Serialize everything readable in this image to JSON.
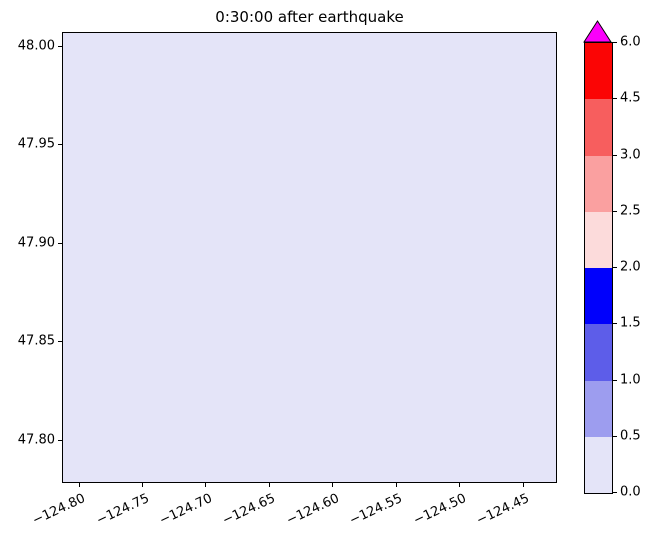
{
  "chart_data": {
    "type": "heatmap",
    "title": "0:30:00 after earthquake",
    "xlabel": "",
    "ylabel": "",
    "x_tick_labels": [
      "−124.80",
      "−124.75",
      "−124.70",
      "−124.65",
      "−124.60",
      "−124.55",
      "−124.50",
      "−124.45"
    ],
    "x_tick_values": [
      -124.8,
      -124.75,
      -124.7,
      -124.65,
      -124.6,
      -124.55,
      -124.5,
      -124.45
    ],
    "y_tick_labels": [
      "48.00",
      "47.95",
      "47.90",
      "47.85",
      "47.80"
    ],
    "y_tick_values": [
      48.0,
      47.95,
      47.9,
      47.85,
      47.8
    ],
    "xlim": [
      -124.813,
      -124.423
    ],
    "ylim": [
      47.778,
      48.007
    ],
    "grid": false,
    "plot_bg_color": "#e4e4f8",
    "field": {
      "description": "uniform field value over the whole map region",
      "uniform": true,
      "value_bin": [
        0.0,
        0.5
      ]
    },
    "colorbar": {
      "position": "right",
      "extend": "max",
      "boundaries": [
        0.0,
        0.5,
        1.0,
        1.5,
        2.0,
        2.5,
        3.0,
        4.5,
        6.0
      ],
      "tick_labels": [
        "0.0",
        "0.5",
        "1.0",
        "1.5",
        "2.0",
        "2.5",
        "3.0",
        "4.5",
        "6.0"
      ],
      "segment_colors": [
        "#e4e4f8",
        "#9d9def",
        "#5d5de9",
        "#0000fc",
        "#fcdbdb",
        "#faa0a0",
        "#f75e5e",
        "#fb0505"
      ],
      "over_color": "#fb00fb"
    }
  }
}
